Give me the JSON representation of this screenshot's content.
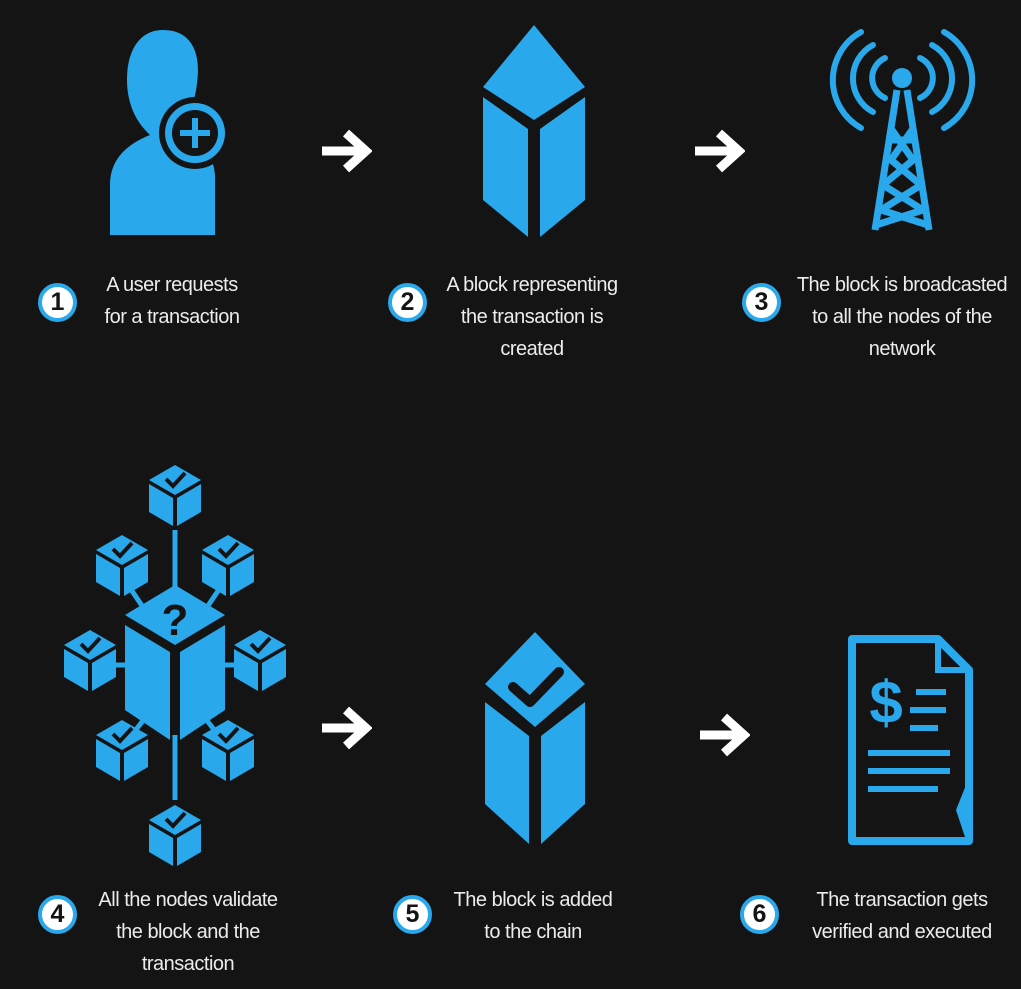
{
  "colors": {
    "background": "#141414",
    "accent": "#29a8ec",
    "text": "#ececec",
    "arrow": "#ffffff"
  },
  "steps": [
    {
      "number": "1",
      "icon": "user-add-icon",
      "lines": [
        "A user requests",
        "for a transaction"
      ]
    },
    {
      "number": "2",
      "icon": "block-cube-icon",
      "lines": [
        "A block representing",
        "the transaction is",
        "created"
      ]
    },
    {
      "number": "3",
      "icon": "broadcast-tower-icon",
      "lines": [
        "The block is broadcasted",
        "to all the nodes of the",
        "network"
      ]
    },
    {
      "number": "4",
      "icon": "node-network-icon",
      "lines": [
        "All the nodes validate",
        "the block and the",
        "transaction"
      ]
    },
    {
      "number": "5",
      "icon": "verified-block-icon",
      "lines": [
        "The block is added",
        "to the chain"
      ]
    },
    {
      "number": "6",
      "icon": "document-dollar-icon",
      "lines": [
        "The transaction gets",
        "verified and executed"
      ]
    }
  ],
  "arrows": [
    "arrow-right-icon",
    "arrow-right-icon",
    "arrow-right-icon",
    "arrow-right-icon"
  ]
}
